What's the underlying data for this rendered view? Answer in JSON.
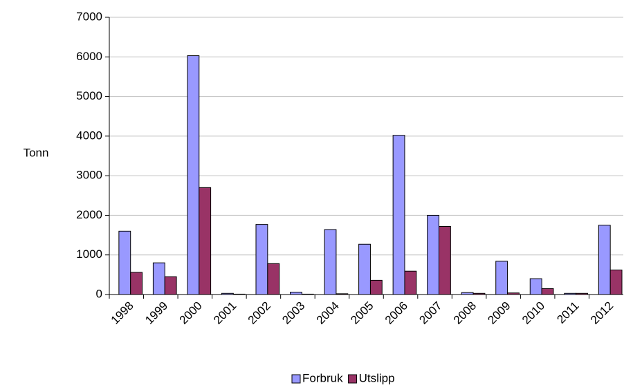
{
  "chart_data": {
    "type": "bar",
    "y_label": "Tonn",
    "categories": [
      "1998",
      "1999",
      "2000",
      "2001",
      "2002",
      "2003",
      "2004",
      "2005",
      "2006",
      "2007",
      "2008",
      "2009",
      "2010",
      "2011",
      "2012"
    ],
    "series": [
      {
        "name": "Forbruk",
        "color": "#9999ff",
        "values": [
          1600,
          800,
          6030,
          30,
          1770,
          60,
          1640,
          1270,
          4020,
          2000,
          50,
          840,
          400,
          30,
          1750
        ]
      },
      {
        "name": "Utslipp",
        "color": "#993366",
        "values": [
          560,
          450,
          2700,
          10,
          780,
          10,
          20,
          360,
          590,
          1720,
          30,
          40,
          150,
          30,
          620
        ]
      }
    ],
    "ylim": [
      0,
      7000
    ],
    "yticks": [
      0,
      1000,
      2000,
      3000,
      4000,
      5000,
      6000,
      7000
    ],
    "grid": true,
    "legend": "bottom"
  }
}
